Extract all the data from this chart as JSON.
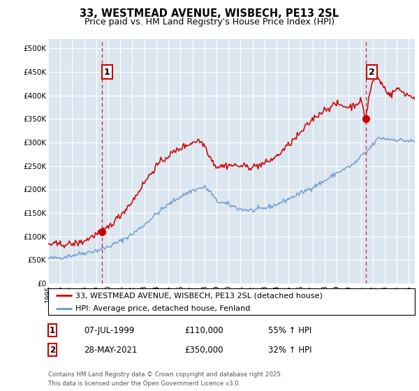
{
  "title": "33, WESTMEAD AVENUE, WISBECH, PE13 2SL",
  "subtitle": "Price paid vs. HM Land Registry's House Price Index (HPI)",
  "plot_bg_color": "#dce6f1",
  "red_line_color": "#cc0000",
  "blue_line_color": "#6699cc",
  "ylim": [
    0,
    520000
  ],
  "yticks": [
    0,
    50000,
    100000,
    150000,
    200000,
    250000,
    300000,
    350000,
    400000,
    450000,
    500000
  ],
  "ytick_labels": [
    "£0",
    "£50K",
    "£100K",
    "£150K",
    "£200K",
    "£250K",
    "£300K",
    "£350K",
    "£400K",
    "£450K",
    "£500K"
  ],
  "xlim_start": 1995.0,
  "xlim_end": 2025.5,
  "xtick_years": [
    1995,
    1996,
    1997,
    1998,
    1999,
    2000,
    2001,
    2002,
    2003,
    2004,
    2005,
    2006,
    2007,
    2008,
    2009,
    2010,
    2011,
    2012,
    2013,
    2014,
    2015,
    2016,
    2017,
    2018,
    2019,
    2020,
    2021,
    2022,
    2023,
    2024,
    2025
  ],
  "marker1_x": 1999.5,
  "marker1_y": 110000,
  "marker2_x": 2021.41,
  "marker2_y": 350000,
  "legend_label_red": "33, WESTMEAD AVENUE, WISBECH, PE13 2SL (detached house)",
  "legend_label_blue": "HPI: Average price, detached house, Fenland",
  "annotation1_label": "1",
  "annotation1_date": "07-JUL-1999",
  "annotation1_price": "£110,000",
  "annotation1_hpi": "55% ↑ HPI",
  "annotation2_label": "2",
  "annotation2_date": "28-MAY-2021",
  "annotation2_price": "£350,000",
  "annotation2_hpi": "32% ↑ HPI",
  "footer": "Contains HM Land Registry data © Crown copyright and database right 2025.\nThis data is licensed under the Open Government Licence v3.0.",
  "vline_color": "#cc0000",
  "box_bg": "white",
  "box_edge": "#cc0000"
}
